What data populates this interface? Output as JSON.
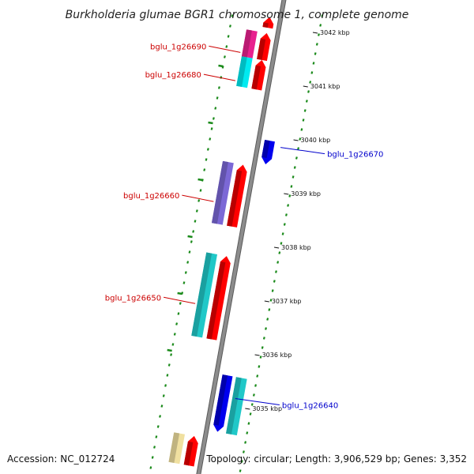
{
  "title": "Burkholderia glumae BGR1 chromosome 1, complete genome",
  "footer": {
    "accession": "Accession: NC_012724",
    "topology": "Topology: circular; Length: 3,906,529 bp; Genes: 3,352"
  },
  "scale": {
    "unit": "kbp",
    "ticks": [
      {
        "kbp": 3042,
        "label": "3042 kbp"
      },
      {
        "kbp": 3041,
        "label": "3041 kbp"
      },
      {
        "kbp": 3040,
        "label": "3040 kbp"
      },
      {
        "kbp": 3039,
        "label": "3039 kbp"
      },
      {
        "kbp": 3038,
        "label": "3038 kbp"
      },
      {
        "kbp": 3037,
        "label": "3037 kbp"
      },
      {
        "kbp": 3036,
        "label": "3036 kbp"
      },
      {
        "kbp": 3035,
        "label": "3035 kbp"
      }
    ]
  },
  "genes": [
    {
      "id": "top-partial",
      "label": "",
      "start_kbp": 3042.05,
      "end_kbp": 3042.25,
      "strand": "+",
      "cds_color": "#ff0000",
      "gene_color": ""
    },
    {
      "id": "bglu_1g26690",
      "label": "bglu_1g26690",
      "start_kbp": 3041.45,
      "end_kbp": 3041.95,
      "strand": "+",
      "cds_color": "#ff0000",
      "gene_color": "#e8208e",
      "label_color": "#cc0000"
    },
    {
      "id": "bglu_1g26680",
      "label": "bglu_1g26680",
      "start_kbp": 3040.9,
      "end_kbp": 3041.45,
      "strand": "+",
      "cds_color": "#ff0000",
      "gene_color": "#00eaf0",
      "label_color": "#cc0000"
    },
    {
      "id": "bglu_1g26670",
      "label": "bglu_1g26670",
      "start_kbp": 3039.58,
      "end_kbp": 3040.02,
      "strand": "-",
      "cds_color": "#0000ee",
      "gene_color": "",
      "label_color": "#0000cc"
    },
    {
      "id": "bglu_1g26660",
      "label": "bglu_1g26660",
      "start_kbp": 3038.35,
      "end_kbp": 3039.5,
      "strand": "+",
      "cds_color": "#ff0000",
      "gene_color": "#7b68d6",
      "label_color": "#cc0000"
    },
    {
      "id": "bglu_1g26650",
      "label": "bglu_1g26650",
      "start_kbp": 3036.25,
      "end_kbp": 3037.8,
      "strand": "+",
      "cds_color": "#ff0000",
      "gene_color": "#20c8c8",
      "label_color": "#cc0000"
    },
    {
      "id": "bglu_1g26640",
      "label": "bglu_1g26640",
      "start_kbp": 3034.6,
      "end_kbp": 3035.65,
      "strand": "-",
      "cds_color": "#0000ee",
      "gene_color": "#20c8c8",
      "label_color": "#0000cc"
    },
    {
      "id": "bottom-partial",
      "label": "",
      "start_kbp": 3033.9,
      "end_kbp": 3034.45,
      "strand": "+",
      "cds_color": "#ff0000",
      "gene_color": "#f0e0a0"
    }
  ],
  "colors": {
    "backbone": "#8c8c8c",
    "backbone_edge": "#5a5a5a",
    "dots": "#1a8a1a",
    "scale_text": "#111111"
  }
}
